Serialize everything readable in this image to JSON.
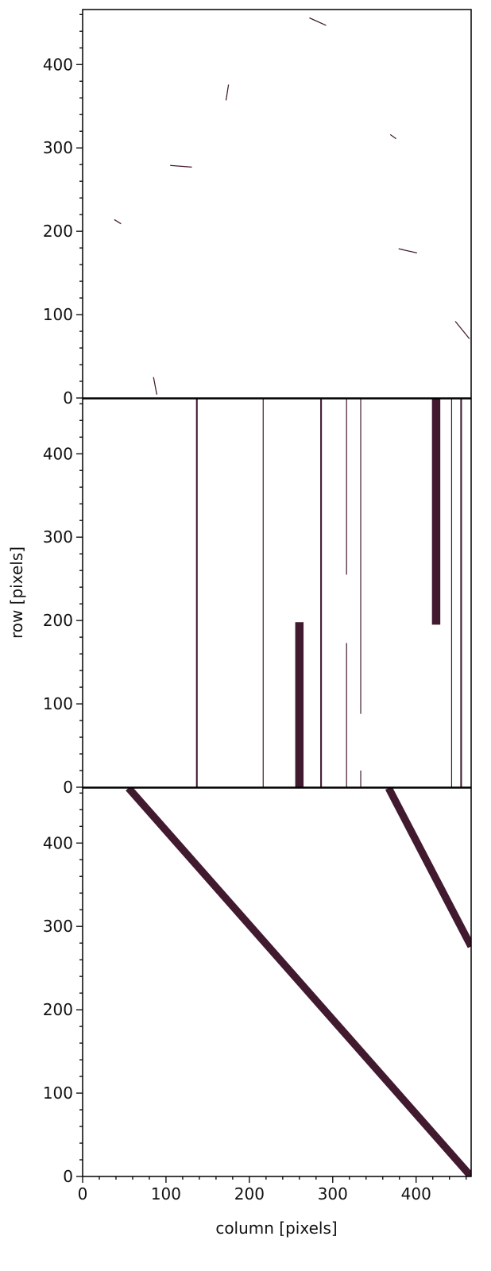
{
  "colors": {
    "mask": "#421a30",
    "axis": "#000000",
    "background": "#ffffff"
  },
  "chart_data": [
    {
      "type": "heatmap",
      "panel": "top",
      "xlim": [
        0,
        466
      ],
      "ylim": [
        0,
        466
      ],
      "y_ticks": [
        "0",
        "100",
        "200",
        "300",
        "400"
      ],
      "segments": [
        {
          "x1": 272,
          "y1": 456,
          "x2": 292,
          "y2": 447,
          "w": 1.2
        },
        {
          "x1": 175,
          "y1": 376,
          "x2": 172,
          "y2": 357,
          "w": 1.2
        },
        {
          "x1": 369,
          "y1": 316,
          "x2": 376,
          "y2": 311,
          "w": 1.2
        },
        {
          "x1": 105,
          "y1": 279,
          "x2": 131,
          "y2": 277,
          "w": 1.2
        },
        {
          "x1": 38,
          "y1": 214,
          "x2": 46,
          "y2": 209,
          "w": 1.2
        },
        {
          "x1": 379,
          "y1": 179,
          "x2": 401,
          "y2": 174,
          "w": 1.2
        },
        {
          "x1": 447,
          "y1": 92,
          "x2": 464,
          "y2": 71,
          "w": 1.2
        },
        {
          "x1": 85,
          "y1": 25,
          "x2": 89,
          "y2": 4,
          "w": 1.2
        }
      ]
    },
    {
      "type": "heatmap",
      "panel": "middle",
      "xlim": [
        0,
        466
      ],
      "ylim": [
        0,
        466
      ],
      "y_ticks": [
        "0",
        "100",
        "200",
        "300",
        "400"
      ],
      "ylabel": "row [pixels]",
      "columns": [
        {
          "x0": 136,
          "x1": 138,
          "y0": 0,
          "y1": 466
        },
        {
          "x0": 216,
          "x1": 217,
          "y0": 0,
          "y1": 466
        },
        {
          "x0": 255,
          "x1": 265,
          "y0": 0,
          "y1": 198
        },
        {
          "x0": 285,
          "x1": 287,
          "y0": 0,
          "y1": 466
        },
        {
          "x0": 316,
          "x1": 317,
          "y0": 0,
          "y1": 173
        },
        {
          "x0": 316,
          "x1": 317,
          "y0": 255,
          "y1": 466
        },
        {
          "x0": 333,
          "x1": 334,
          "y0": 0,
          "y1": 20
        },
        {
          "x0": 333,
          "x1": 334,
          "y0": 88,
          "y1": 466
        },
        {
          "x0": 419,
          "x1": 429,
          "y0": 195,
          "y1": 466
        },
        {
          "x0": 442,
          "x1": 443,
          "y0": 0,
          "y1": 466
        },
        {
          "x0": 453,
          "x1": 455,
          "y0": 0,
          "y1": 466
        }
      ]
    },
    {
      "type": "heatmap",
      "panel": "bottom",
      "xlim": [
        0,
        466
      ],
      "ylim": [
        0,
        466
      ],
      "x_ticks": [
        "0",
        "100",
        "200",
        "300",
        "400"
      ],
      "y_ticks": [
        "0",
        "100",
        "200",
        "300",
        "400"
      ],
      "xlabel": "column [pixels]",
      "segments": [
        {
          "x1": 55,
          "y1": 466,
          "x2": 466,
          "y2": 0,
          "w": 9
        },
        {
          "x1": 367,
          "y1": 466,
          "x2": 466,
          "y2": 276,
          "w": 9
        }
      ]
    }
  ]
}
